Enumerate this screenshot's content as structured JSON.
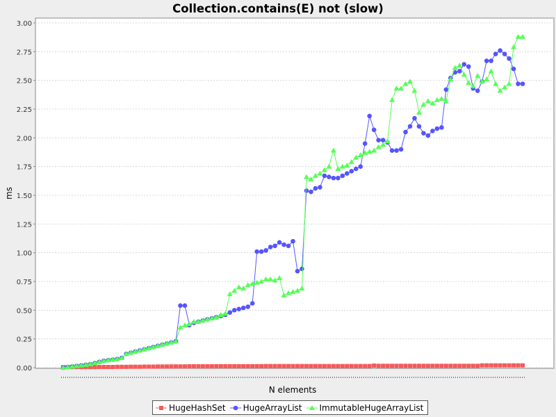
{
  "chart_data": {
    "type": "line",
    "title": "Collection.contains(E) not (slow)",
    "xlabel": "N elements",
    "ylabel": "ms",
    "ylim": [
      0,
      3.0
    ],
    "yticks": [
      "0.00",
      "0.25",
      "0.50",
      "0.75",
      "1.00",
      "1.25",
      "1.50",
      "1.75",
      "2.00",
      "2.25",
      "2.50",
      "2.75",
      "3.00"
    ],
    "grid": true,
    "legend_position": "bottom",
    "series": [
      {
        "name": "HugeHashSet",
        "color": "#f55a5a",
        "marker": "square",
        "values": [
          0.005,
          0.005,
          0.005,
          0.005,
          0.005,
          0.005,
          0.005,
          0.005,
          0.006,
          0.006,
          0.006,
          0.006,
          0.007,
          0.007,
          0.007,
          0.008,
          0.008,
          0.008,
          0.009,
          0.009,
          0.009,
          0.01,
          0.01,
          0.01,
          0.011,
          0.011,
          0.011,
          0.011,
          0.012,
          0.012,
          0.012,
          0.012,
          0.012,
          0.012,
          0.013,
          0.013,
          0.013,
          0.013,
          0.013,
          0.013,
          0.013,
          0.013,
          0.013,
          0.013,
          0.013,
          0.014,
          0.014,
          0.014,
          0.014,
          0.014,
          0.014,
          0.014,
          0.014,
          0.014,
          0.014,
          0.014,
          0.014,
          0.014,
          0.014,
          0.014,
          0.014,
          0.014,
          0.014,
          0.014,
          0.014,
          0.014,
          0.014,
          0.014,
          0.014,
          0.018,
          0.016,
          0.016,
          0.016,
          0.016,
          0.016,
          0.016,
          0.016,
          0.016,
          0.016,
          0.016,
          0.016,
          0.016,
          0.016,
          0.016,
          0.016,
          0.016,
          0.016,
          0.016,
          0.016,
          0.016,
          0.016,
          0.016,
          0.016,
          0.02,
          0.02,
          0.02,
          0.02,
          0.02,
          0.02,
          0.02,
          0.02,
          0.02,
          0.02
        ]
      },
      {
        "name": "HugeArrayList",
        "color": "#5555ff",
        "marker": "circle",
        "values": [
          0.0,
          0.005,
          0.01,
          0.015,
          0.02,
          0.025,
          0.03,
          0.04,
          0.05,
          0.06,
          0.065,
          0.07,
          0.075,
          0.085,
          0.12,
          0.13,
          0.14,
          0.15,
          0.16,
          0.17,
          0.18,
          0.19,
          0.2,
          0.21,
          0.22,
          0.23,
          0.54,
          0.54,
          0.37,
          0.39,
          0.4,
          0.41,
          0.42,
          0.43,
          0.44,
          0.45,
          0.46,
          0.48,
          0.5,
          0.51,
          0.52,
          0.53,
          0.56,
          1.01,
          1.01,
          1.02,
          1.05,
          1.06,
          1.09,
          1.07,
          1.06,
          1.1,
          0.84,
          0.86,
          1.54,
          1.53,
          1.56,
          1.57,
          1.67,
          1.66,
          1.65,
          1.65,
          1.67,
          1.69,
          1.71,
          1.73,
          1.75,
          1.95,
          2.19,
          2.07,
          1.98,
          1.98,
          1.96,
          1.89,
          1.89,
          1.9,
          2.05,
          2.1,
          2.17,
          2.1,
          2.04,
          2.02,
          2.06,
          2.08,
          2.09,
          2.42,
          2.52,
          2.57,
          2.58,
          2.64,
          2.62,
          2.43,
          2.41,
          2.49,
          2.67,
          2.67,
          2.73,
          2.76,
          2.73,
          2.69,
          2.6,
          2.47,
          2.47
        ]
      },
      {
        "name": "ImmutableHugeArrayList",
        "color": "#55ff55",
        "marker": "triangle",
        "values": [
          0.0,
          0.005,
          0.01,
          0.015,
          0.02,
          0.025,
          0.03,
          0.04,
          0.05,
          0.06,
          0.065,
          0.07,
          0.075,
          0.085,
          0.12,
          0.13,
          0.14,
          0.15,
          0.16,
          0.17,
          0.18,
          0.19,
          0.2,
          0.21,
          0.22,
          0.23,
          0.35,
          0.37,
          0.38,
          0.4,
          0.4,
          0.41,
          0.42,
          0.43,
          0.44,
          0.46,
          0.47,
          0.64,
          0.67,
          0.7,
          0.69,
          0.72,
          0.73,
          0.74,
          0.75,
          0.77,
          0.77,
          0.76,
          0.78,
          0.63,
          0.65,
          0.66,
          0.67,
          0.69,
          1.66,
          1.64,
          1.67,
          1.69,
          1.72,
          1.75,
          1.89,
          1.73,
          1.75,
          1.76,
          1.79,
          1.83,
          1.85,
          1.87,
          1.88,
          1.89,
          1.92,
          1.94,
          1.97,
          2.33,
          2.43,
          2.43,
          2.47,
          2.49,
          2.41,
          2.22,
          2.29,
          2.32,
          2.3,
          2.33,
          2.34,
          2.32,
          2.51,
          2.61,
          2.63,
          2.55,
          2.48,
          2.45,
          2.54,
          2.49,
          2.51,
          2.58,
          2.47,
          2.41,
          2.44,
          2.47,
          2.79,
          2.88,
          2.88
        ]
      }
    ]
  }
}
